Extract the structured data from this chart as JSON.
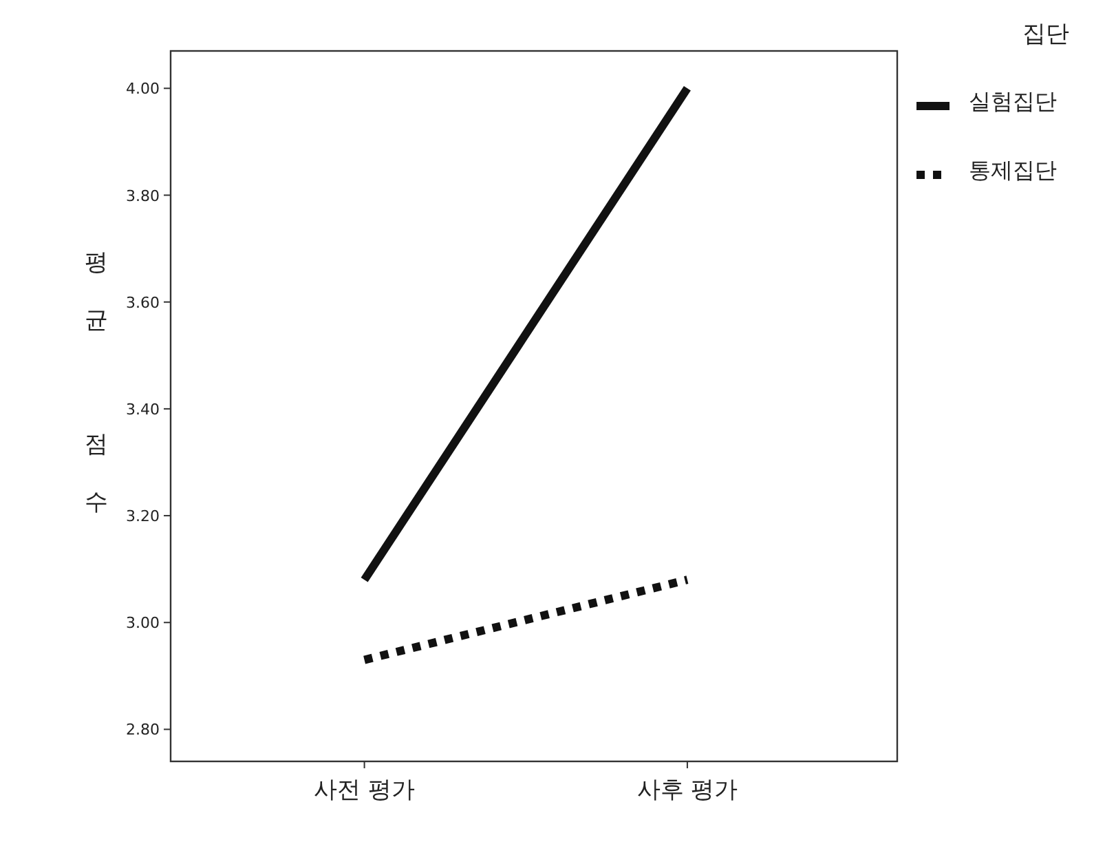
{
  "chart_data": {
    "type": "line",
    "ylabel": "평균 점수",
    "legend_title": "집단",
    "categories": [
      "사전 평가",
      "사후 평가"
    ],
    "series": [
      {
        "name": "실험집단",
        "color": "#111111",
        "line_style": "solid",
        "values": [
          3.08,
          4.0
        ]
      },
      {
        "name": "통제집단",
        "color": "#111111",
        "line_style": "dotted",
        "values": [
          2.93,
          3.08
        ]
      }
    ],
    "ylim": [
      2.74,
      4.07
    ],
    "yticks": [
      {
        "value": 2.8,
        "label": "2.80"
      },
      {
        "value": 3.0,
        "label": "3.00"
      },
      {
        "value": 3.2,
        "label": "3.20"
      },
      {
        "value": 3.4,
        "label": "3.40"
      },
      {
        "value": 3.6,
        "label": "3.60"
      },
      {
        "value": 3.8,
        "label": "3.80"
      },
      {
        "value": 4.0,
        "label": "4.00"
      }
    ],
    "legend": "top right",
    "grid": false,
    "marker": "none"
  }
}
